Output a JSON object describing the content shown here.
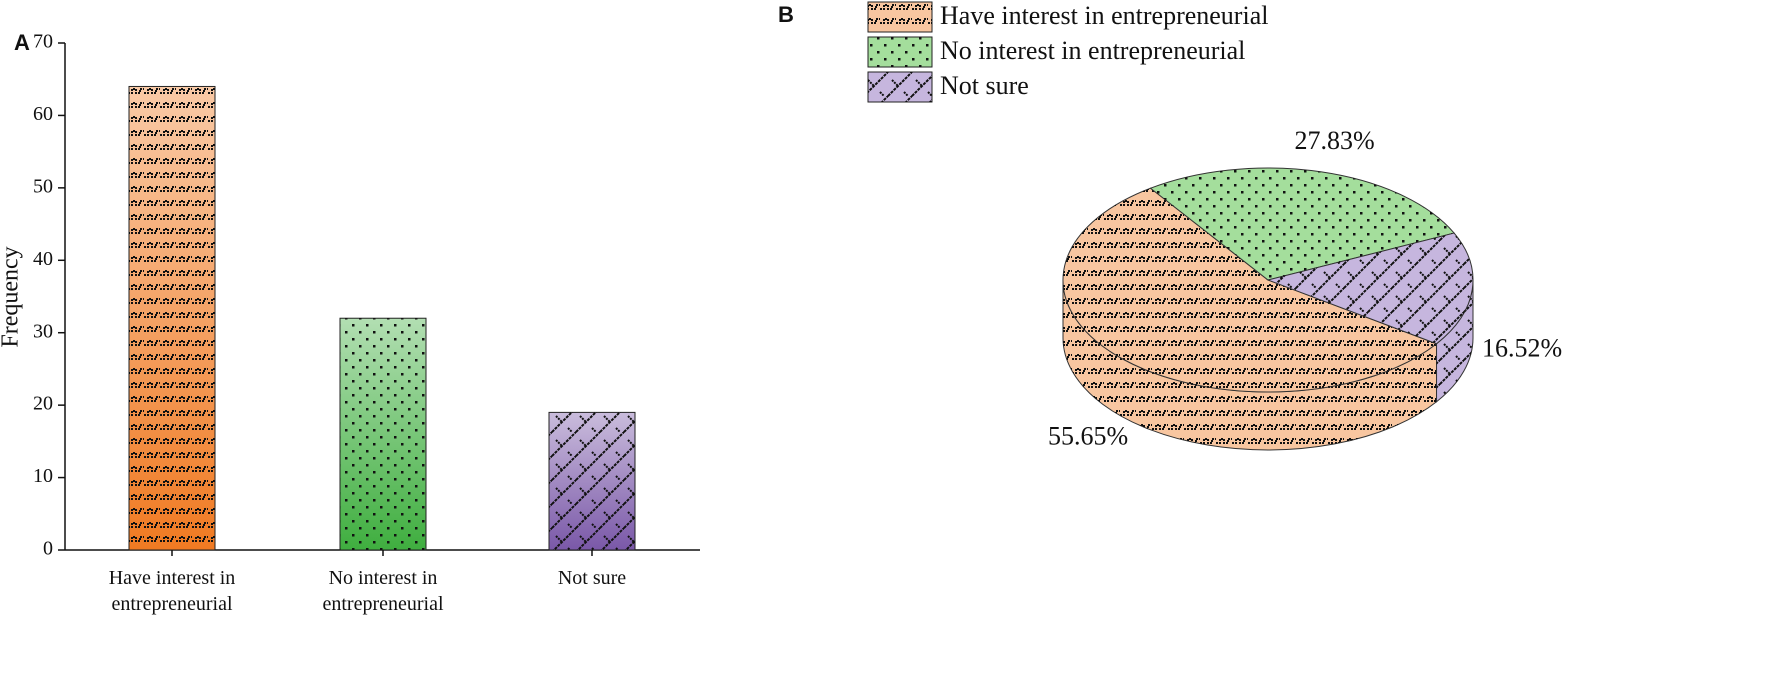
{
  "chart_data": [
    {
      "type": "bar",
      "label": "A",
      "ylabel": "Frequency",
      "categories": [
        "Have interest in entrepreneurial",
        "No interest in entrepreneurial",
        "Not sure"
      ],
      "values": [
        64,
        32,
        19
      ],
      "colors": [
        "#f07a22",
        "#3fae3f",
        "#7a58a8"
      ],
      "patterns": [
        "zigzag",
        "dots",
        "lattice"
      ],
      "ylim": [
        0,
        70
      ],
      "yticks": [
        0,
        10,
        20,
        30,
        40,
        50,
        60,
        70
      ]
    },
    {
      "type": "pie",
      "label": "B",
      "categories": [
        "Have interest in entrepreneurial",
        "No interest in entrepreneurial",
        "Not sure"
      ],
      "values": [
        55.65,
        27.83,
        16.52
      ],
      "value_labels": [
        "55.65%",
        "27.83%",
        "16.52%"
      ],
      "colors": [
        "#f8c6a0",
        "#a4de9c",
        "#c6b6de"
      ],
      "patterns": [
        "zigzag",
        "dots",
        "lattice"
      ]
    }
  ]
}
